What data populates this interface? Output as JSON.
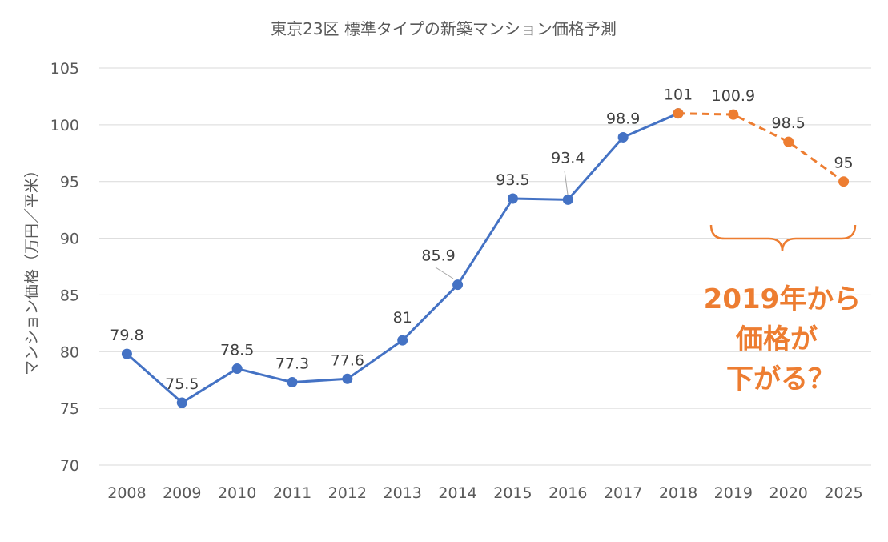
{
  "chart_data": {
    "type": "line",
    "title": "東京23区 標準タイプの新築マンション価格予測",
    "xlabel": "",
    "ylabel": "マンション価格（万円／平米）",
    "categories": [
      "2008",
      "2009",
      "2010",
      "2011",
      "2012",
      "2013",
      "2014",
      "2015",
      "2016",
      "2017",
      "2018",
      "2019",
      "2020",
      "2025"
    ],
    "y_ticks": [
      "70",
      "75",
      "80",
      "85",
      "90",
      "95",
      "100",
      "105"
    ],
    "ylim": [
      70,
      105
    ],
    "grid": true,
    "series": [
      {
        "style": "solid",
        "color": "#4472C4",
        "x": [
          "2008",
          "2009",
          "2010",
          "2011",
          "2012",
          "2013",
          "2014",
          "2015",
          "2016",
          "2017",
          "2018"
        ],
        "values": [
          79.8,
          75.5,
          78.5,
          77.3,
          77.6,
          81,
          85.9,
          93.5,
          93.4,
          98.9,
          101
        ],
        "labels": [
          "79.8",
          "75.5",
          "78.5",
          "77.3",
          "77.6",
          "81",
          "85.9",
          "93.5",
          "93.4",
          "98.9",
          "101"
        ]
      },
      {
        "style": "dashed",
        "color": "#ED7D31",
        "x": [
          "2018",
          "2019",
          "2020",
          "2025"
        ],
        "values": [
          101,
          100.9,
          98.5,
          95
        ],
        "labels": [
          "101",
          "100.9",
          "98.5",
          "95"
        ]
      }
    ],
    "annotation": {
      "lines": [
        "2019年から",
        "価格が",
        "下がる？"
      ],
      "color": "#ED7D31"
    }
  }
}
